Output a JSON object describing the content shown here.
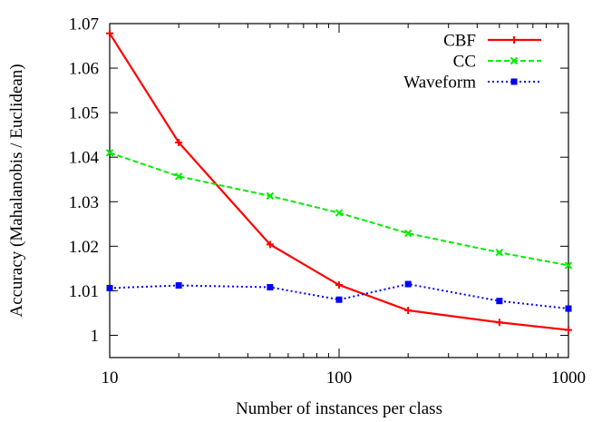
{
  "chart_data": {
    "type": "line",
    "xlabel": "Number of instances per class",
    "ylabel": "Accuracy  (Mahalanobis / Euclidean)",
    "xscale": "log",
    "xlim": [
      10,
      1000
    ],
    "ylim": [
      0.995,
      1.07
    ],
    "grid": false,
    "legend_position": "top-right",
    "x_ticks": [
      10,
      100,
      1000
    ],
    "x_tick_labels": [
      "10",
      "100",
      "1000"
    ],
    "y_ticks": [
      1.0,
      1.01,
      1.02,
      1.03,
      1.04,
      1.05,
      1.06,
      1.07
    ],
    "y_tick_labels": [
      "1",
      "1.01",
      "1.02",
      "1.03",
      "1.04",
      "1.05",
      "1.06",
      "1.07"
    ],
    "x": [
      10,
      20,
      50,
      100,
      200,
      500,
      1000
    ],
    "series": [
      {
        "name": "CBF",
        "color": "#ff0000",
        "dash": "solid",
        "marker": "plus",
        "values": [
          1.0678,
          1.0433,
          1.0204,
          1.0113,
          1.0056,
          1.0029,
          1.0012
        ]
      },
      {
        "name": "CC",
        "color": "#00ee00",
        "dash": "dashed",
        "marker": "cross",
        "values": [
          1.041,
          1.0357,
          1.0313,
          1.0275,
          1.0229,
          1.0186,
          1.0157
        ]
      },
      {
        "name": "Waveform",
        "color": "#0000ff",
        "dash": "dotted",
        "marker": "square",
        "values": [
          1.0106,
          1.0112,
          1.0108,
          1.008,
          1.0115,
          1.0077,
          1.006
        ]
      }
    ]
  }
}
